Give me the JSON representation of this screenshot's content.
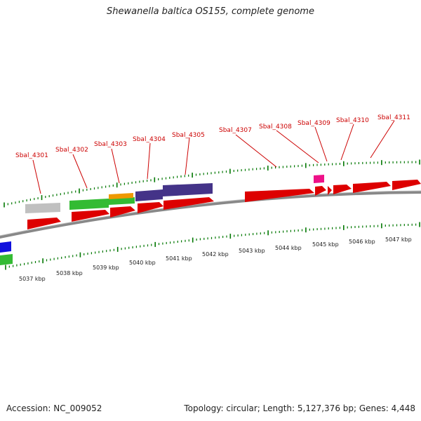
{
  "title": "Shewanella baltica OS155, complete genome",
  "footer": {
    "accession": "Accession: NC_009052",
    "summary": "Topology: circular; Length: 5,127,376 bp; Genes: 4,448"
  },
  "colors": {
    "cds_forward": "#dd0000",
    "tick": "#007700",
    "backbone": "#888888",
    "label": "#cc0000",
    "gene_grey": "#c0c0c0",
    "gene_green": "#33bb33",
    "gene_orange": "#ee9900",
    "gene_purple": "#443388",
    "gene_magenta": "#ee1188",
    "gene_blue": "#1111dd"
  },
  "gene_labels": [
    "Sbal_4301",
    "Sbal_4302",
    "Sbal_4303",
    "Sbal_4304",
    "Sbal_4305",
    "Sbal_4307",
    "Sbal_4308",
    "Sbal_4309",
    "Sbal_4310",
    "Sbal_4311"
  ],
  "kbp_labels": [
    "5037 kbp",
    "5038 kbp",
    "5039 kbp",
    "5040 kbp",
    "5041 kbp",
    "5042 kbp",
    "5043 kbp",
    "5044 kbp",
    "5045 kbp",
    "5046 kbp",
    "5047 kbp"
  ]
}
